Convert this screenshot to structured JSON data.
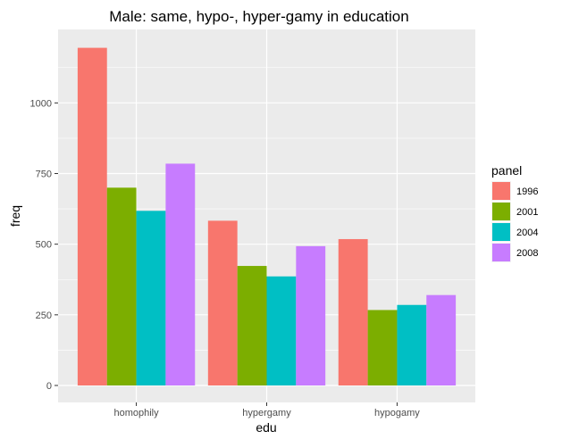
{
  "chart_data": {
    "type": "bar",
    "title": "Male: same, hypo-, hyper-gamy in education",
    "xlabel": "edu",
    "ylabel": "freq",
    "categories": [
      "homophily",
      "hypergamy",
      "hypogamy"
    ],
    "series": [
      {
        "name": "1996",
        "values": [
          1195,
          583,
          518
        ],
        "color": "#F8766D"
      },
      {
        "name": "2001",
        "values": [
          700,
          423,
          267
        ],
        "color": "#7CAE00"
      },
      {
        "name": "2004",
        "values": [
          618,
          386,
          285
        ],
        "color": "#00BFC4"
      },
      {
        "name": "2008",
        "values": [
          785,
          493,
          320
        ],
        "color": "#C77CFF"
      }
    ],
    "yticks": [
      0,
      250,
      500,
      750,
      1000
    ],
    "ylim": [
      -60,
      1260
    ],
    "legend": {
      "title": "panel",
      "placement": "right"
    },
    "grid": true,
    "panel_background": "#EBEBEB",
    "grid_color": "#FFFFFF"
  }
}
